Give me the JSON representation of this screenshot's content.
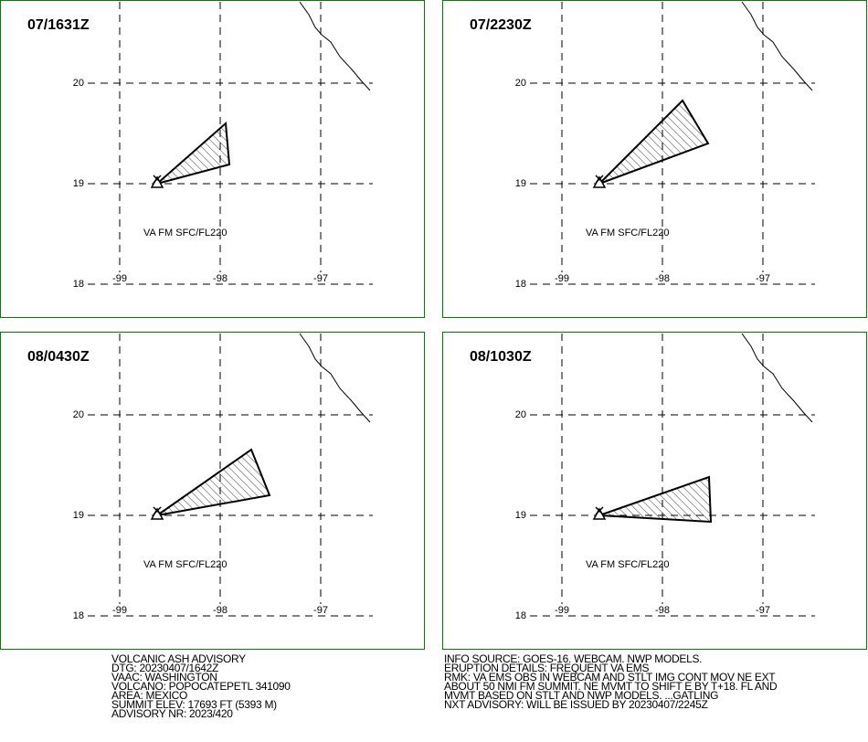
{
  "panels": [
    {
      "time": "07/1631Z",
      "layer": "VA FM SFC/FL220",
      "lat_labels": [
        "20",
        "19",
        "18"
      ],
      "lon_labels": [
        "-99",
        "-98",
        "-97"
      ]
    },
    {
      "time": "07/2230Z",
      "layer": "VA FM SFC/FL220",
      "lat_labels": [
        "20",
        "19",
        "18"
      ],
      "lon_labels": [
        "-99",
        "-98",
        "-97"
      ]
    },
    {
      "time": "08/0430Z",
      "layer": "VA FM SFC/FL220",
      "lat_labels": [
        "20",
        "19",
        "18"
      ],
      "lon_labels": [
        "-99",
        "-98",
        "-97"
      ]
    },
    {
      "time": "08/1030Z",
      "layer": "VA FM SFC/FL220",
      "lat_labels": [
        "20",
        "19",
        "18"
      ],
      "lon_labels": [
        "-99",
        "-98",
        "-97"
      ]
    }
  ],
  "advisory_left": [
    "VOLCANIC ASH ADVISORY",
    "DTG: 20230407/1642Z",
    "VAAC: WASHINGTON",
    "VOLCANO: POPOCATEPETL 341090",
    "AREA: MEXICO",
    "SUMMIT ELEV: 17693 FT (5393 M)",
    "ADVISORY NR: 2023/420"
  ],
  "advisory_right": [
    "INFO SOURCE: GOES-16. WEBCAM. NWP MODELS.",
    "ERUPTION DETAILS: FREQUENT VA EMS",
    "RMK: VA EMS OBS IN WEBCAM AND STLT IMG CONT MOV NE EXT",
    "ABOUT 50 NMI FM SUMMIT. NE MVMT TO SHIFT E BY T+18. FL AND",
    "MVMT BASED ON STLT AND NWP MODELS. ...GATLING",
    "NXT ADVISORY: WILL BE ISSUED BY 20230407/2245Z"
  ]
}
